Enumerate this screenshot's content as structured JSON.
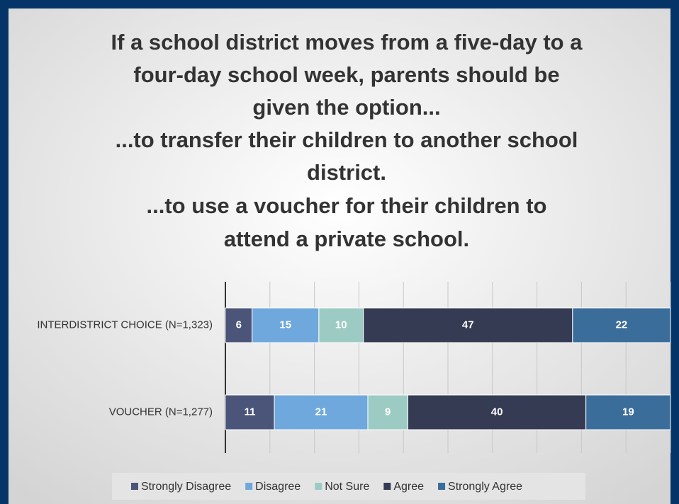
{
  "chart_data": {
    "type": "stacked_barh",
    "title": [
      "If a school district moves from a five-day to a",
      "four-day school week, parents should be",
      "given the option...",
      "...to transfer their children to another school",
      "district.",
      "...to use a voucher for their children to",
      "attend a private school."
    ],
    "categories": [
      "INTERDISTRICT CHOICE (N=1,323)",
      "VOUCHER (N=1,277)"
    ],
    "series": [
      {
        "name": "Strongly Disagree",
        "color": "#4b5579",
        "values": [
          6,
          11
        ]
      },
      {
        "name": "Disagree",
        "color": "#6fa8dc",
        "values": [
          15,
          21
        ]
      },
      {
        "name": "Not Sure",
        "color": "#9ccbc4",
        "values": [
          10,
          9
        ]
      },
      {
        "name": "Agree",
        "color": "#353b53",
        "values": [
          47,
          40
        ]
      },
      {
        "name": "Strongly Agree",
        "color": "#3b6d9b",
        "values": [
          22,
          19
        ]
      }
    ],
    "xlim": [
      0,
      100
    ],
    "xticks": [
      0,
      10,
      20,
      30,
      40,
      50,
      60,
      70,
      80,
      90,
      100
    ],
    "grid": true,
    "legend": "bottom"
  }
}
